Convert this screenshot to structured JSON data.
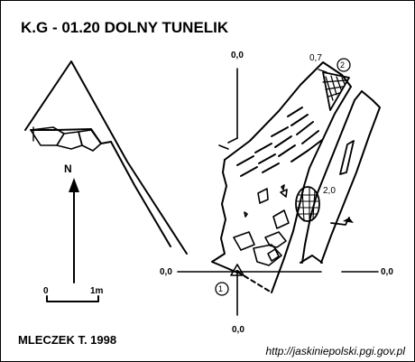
{
  "map": {
    "title": "K.G - 01.20  DOLNY TUNELIK",
    "author": "MLECZEK T. 1998",
    "url": "http://jaskiniepolski.pgi.gov.pl",
    "north_label": "N",
    "scale": {
      "zero_label": "0",
      "length_label": "1m"
    },
    "cross_sections": {
      "top": "0,0",
      "bottom": "0,0",
      "left": "0,0",
      "right": "0,0"
    },
    "depths": {
      "top_point": "0,7",
      "middle_point": "2,0"
    },
    "survey_points": [
      {
        "number": "1"
      },
      {
        "number": "2"
      }
    ],
    "colors": {
      "ink": "#000000",
      "paper": "#ffffff"
    }
  }
}
